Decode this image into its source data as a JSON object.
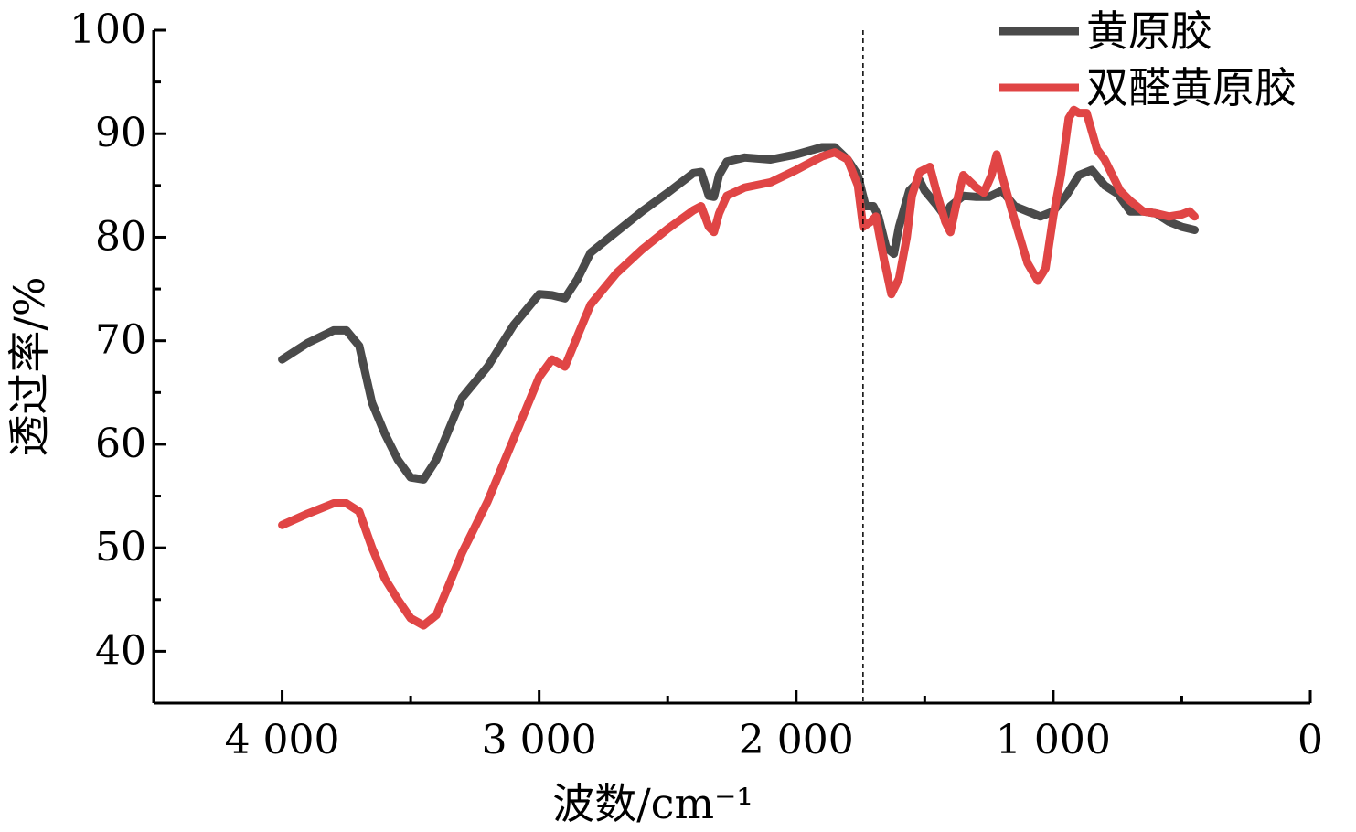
{
  "chart_data": {
    "type": "line",
    "xlabel": "波数/cm⁻¹",
    "ylabel": "透过率/%",
    "xlim": [
      4500,
      0
    ],
    "ylim": [
      35,
      100
    ],
    "x_ticks": [
      4000,
      3000,
      2000,
      1000,
      0
    ],
    "x_tick_labels": [
      "4 000",
      "3 000",
      "2 000",
      "1 000",
      "0"
    ],
    "y_ticks": [
      40,
      50,
      60,
      70,
      80,
      90,
      100
    ],
    "y_tick_labels": [
      "40",
      "50",
      "60",
      "70",
      "80",
      "90",
      "100"
    ],
    "reference_line_x": 1740,
    "grid": false,
    "legend": "top-right",
    "series": [
      {
        "name": "黄原胶",
        "color": "#4a4a4a",
        "points": [
          [
            4000,
            68.2
          ],
          [
            3900,
            69.8
          ],
          [
            3800,
            71
          ],
          [
            3750,
            71
          ],
          [
            3700,
            69.5
          ],
          [
            3650,
            64
          ],
          [
            3600,
            61
          ],
          [
            3550,
            58.5
          ],
          [
            3500,
            56.8
          ],
          [
            3450,
            56.6
          ],
          [
            3400,
            58.5
          ],
          [
            3350,
            61.5
          ],
          [
            3300,
            64.5
          ],
          [
            3200,
            67.5
          ],
          [
            3100,
            71.5
          ],
          [
            3000,
            74.5
          ],
          [
            2950,
            74.4
          ],
          [
            2900,
            74.1
          ],
          [
            2850,
            76
          ],
          [
            2800,
            78.5
          ],
          [
            2700,
            80.5
          ],
          [
            2600,
            82.5
          ],
          [
            2500,
            84.3
          ],
          [
            2400,
            86.2
          ],
          [
            2370,
            86.3
          ],
          [
            2340,
            84
          ],
          [
            2320,
            83.9
          ],
          [
            2300,
            86
          ],
          [
            2270,
            87.3
          ],
          [
            2200,
            87.7
          ],
          [
            2100,
            87.5
          ],
          [
            2000,
            88
          ],
          [
            1900,
            88.7
          ],
          [
            1850,
            88.7
          ],
          [
            1800,
            87.5
          ],
          [
            1760,
            86
          ],
          [
            1730,
            83
          ],
          [
            1700,
            83
          ],
          [
            1680,
            82
          ],
          [
            1650,
            79
          ],
          [
            1620,
            78.4
          ],
          [
            1600,
            81
          ],
          [
            1560,
            84.5
          ],
          [
            1520,
            85.5
          ],
          [
            1500,
            84.5
          ],
          [
            1450,
            83
          ],
          [
            1420,
            82
          ],
          [
            1400,
            83
          ],
          [
            1350,
            84
          ],
          [
            1300,
            83.9
          ],
          [
            1250,
            83.9
          ],
          [
            1200,
            84.5
          ],
          [
            1150,
            83
          ],
          [
            1100,
            82.5
          ],
          [
            1050,
            82
          ],
          [
            1000,
            82.5
          ],
          [
            950,
            84
          ],
          [
            900,
            86
          ],
          [
            850,
            86.5
          ],
          [
            800,
            85
          ],
          [
            750,
            84.2
          ],
          [
            700,
            82.5
          ],
          [
            650,
            82.5
          ],
          [
            600,
            82.3
          ],
          [
            550,
            81.5
          ],
          [
            500,
            81
          ],
          [
            450,
            80.7
          ]
        ]
      },
      {
        "name": "双醛黄原胶",
        "color": "#e04545",
        "points": [
          [
            4000,
            52.2
          ],
          [
            3900,
            53.3
          ],
          [
            3800,
            54.3
          ],
          [
            3750,
            54.3
          ],
          [
            3700,
            53.5
          ],
          [
            3650,
            50
          ],
          [
            3600,
            47
          ],
          [
            3550,
            45
          ],
          [
            3500,
            43.2
          ],
          [
            3450,
            42.5
          ],
          [
            3400,
            43.5
          ],
          [
            3350,
            46.5
          ],
          [
            3300,
            49.5
          ],
          [
            3200,
            54.5
          ],
          [
            3100,
            60.5
          ],
          [
            3000,
            66.5
          ],
          [
            2950,
            68.2
          ],
          [
            2900,
            67.5
          ],
          [
            2850,
            70.5
          ],
          [
            2800,
            73.5
          ],
          [
            2700,
            76.5
          ],
          [
            2600,
            78.8
          ],
          [
            2500,
            80.8
          ],
          [
            2400,
            82.6
          ],
          [
            2370,
            83
          ],
          [
            2340,
            81
          ],
          [
            2320,
            80.5
          ],
          [
            2300,
            82.3
          ],
          [
            2270,
            84
          ],
          [
            2200,
            84.8
          ],
          [
            2100,
            85.3
          ],
          [
            2000,
            86.5
          ],
          [
            1900,
            87.8
          ],
          [
            1850,
            88.2
          ],
          [
            1800,
            87.5
          ],
          [
            1760,
            85
          ],
          [
            1740,
            81
          ],
          [
            1710,
            81.5
          ],
          [
            1690,
            82
          ],
          [
            1660,
            78
          ],
          [
            1630,
            74.5
          ],
          [
            1600,
            76
          ],
          [
            1570,
            80
          ],
          [
            1550,
            84
          ],
          [
            1520,
            86.3
          ],
          [
            1480,
            86.8
          ],
          [
            1450,
            84
          ],
          [
            1420,
            81.5
          ],
          [
            1400,
            80.5
          ],
          [
            1370,
            84
          ],
          [
            1350,
            86
          ],
          [
            1300,
            84.8
          ],
          [
            1270,
            84.3
          ],
          [
            1240,
            86
          ],
          [
            1220,
            88
          ],
          [
            1200,
            86
          ],
          [
            1160,
            82.5
          ],
          [
            1100,
            77.5
          ],
          [
            1060,
            75.8
          ],
          [
            1030,
            77
          ],
          [
            1000,
            82
          ],
          [
            970,
            86
          ],
          [
            940,
            91.5
          ],
          [
            920,
            92.3
          ],
          [
            900,
            92
          ],
          [
            870,
            92
          ],
          [
            830,
            88.5
          ],
          [
            800,
            87.5
          ],
          [
            770,
            86
          ],
          [
            740,
            84.5
          ],
          [
            700,
            83.5
          ],
          [
            650,
            82.5
          ],
          [
            600,
            82.3
          ],
          [
            550,
            82
          ],
          [
            500,
            82.2
          ],
          [
            470,
            82.5
          ],
          [
            450,
            82
          ]
        ]
      }
    ]
  }
}
